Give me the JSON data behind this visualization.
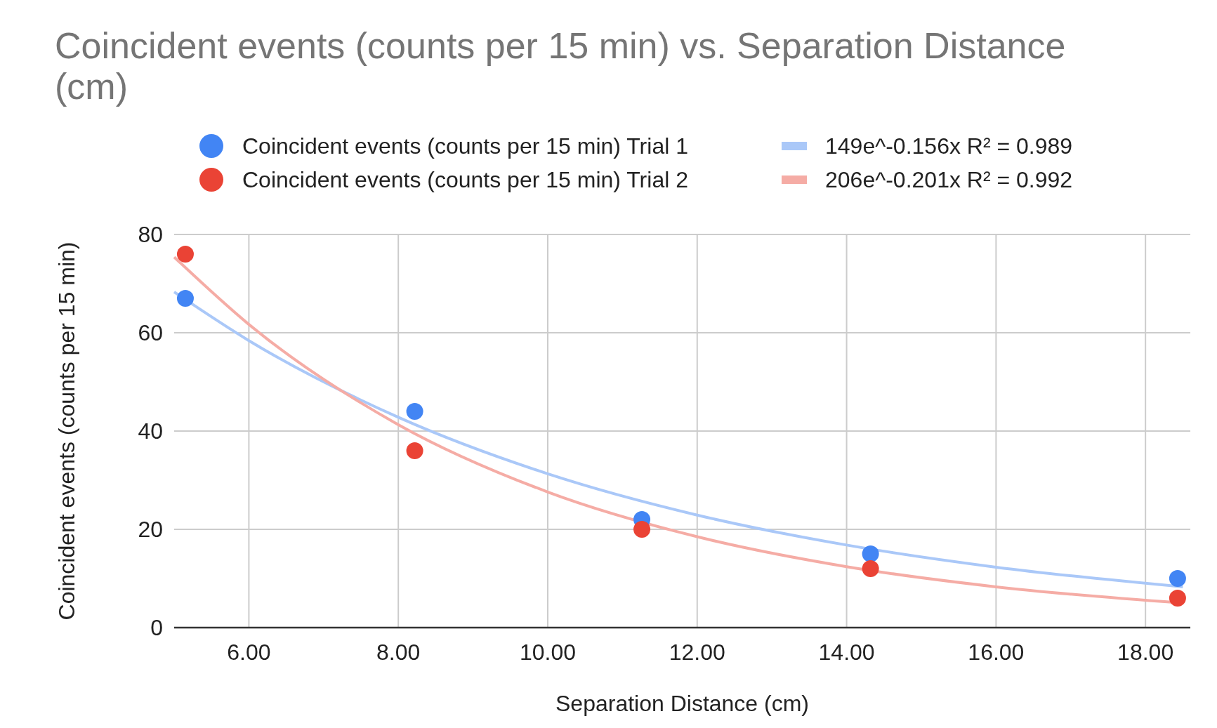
{
  "chart_data": {
    "type": "scatter",
    "title": "Coincident events (counts per 15 min) vs. Separation Distance (cm)",
    "xlabel": "Separation Distance (cm)",
    "ylabel": "Coincident events (counts per 15 min)",
    "x": [
      5.15,
      8.22,
      11.26,
      14.32,
      18.43
    ],
    "series": [
      {
        "name": "Coincident events (counts per 15 min) Trial 1",
        "color": "#4285f4",
        "values": [
          67,
          44,
          22,
          15,
          10
        ]
      },
      {
        "name": "Coincident events (counts per 15 min) Trial 2",
        "color": "#ea4335",
        "values": [
          76,
          36,
          20,
          12,
          6
        ]
      },
      {
        "name": "149e^-0.156x R² = 0.989",
        "type": "line",
        "marker": "none",
        "color": "#aac8f8",
        "x": [
          5,
          6,
          8,
          10,
          12,
          14,
          16,
          18.5
        ],
        "values": [
          68.3,
          58.4,
          42.8,
          31.3,
          22.9,
          16.8,
          12.3,
          8.3
        ]
      },
      {
        "name": "206e^-0.201x R² = 0.992",
        "type": "line",
        "marker": "none",
        "color": "#f5aca5",
        "x": [
          5,
          6,
          8,
          10,
          12,
          14,
          16,
          18.5
        ],
        "values": [
          75.4,
          61.7,
          41.3,
          27.6,
          18.5,
          12.4,
          8.3,
          5.0
        ]
      }
    ],
    "xlim": [
      5,
      18.6
    ],
    "ylim": [
      0,
      80
    ],
    "xticks": [
      {
        "value": 6,
        "label": "6.00"
      },
      {
        "value": 8,
        "label": "8.00"
      },
      {
        "value": 10,
        "label": "10.00"
      },
      {
        "value": 12,
        "label": "12.00"
      },
      {
        "value": 14,
        "label": "14.00"
      },
      {
        "value": 16,
        "label": "16.00"
      },
      {
        "value": 18,
        "label": "18.00"
      }
    ],
    "yticks": [
      0,
      20,
      40,
      60,
      80
    ],
    "grid": true,
    "legend": "top",
    "marker": "circle",
    "line_style": "solid"
  }
}
